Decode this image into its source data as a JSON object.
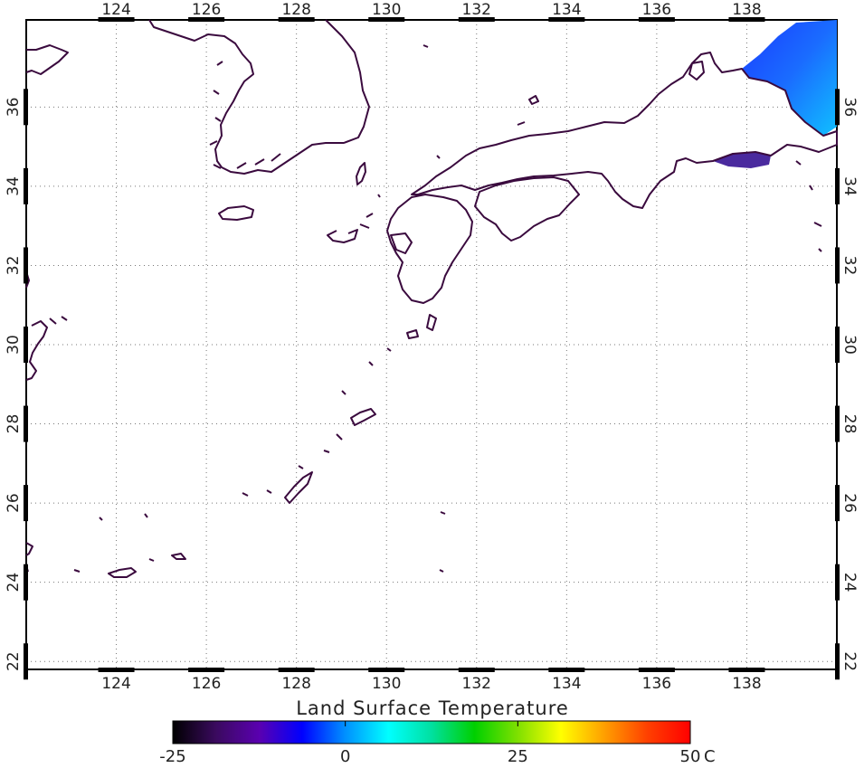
{
  "map": {
    "lon_ticks": [
      "124",
      "126",
      "128",
      "130",
      "132",
      "134",
      "136",
      "138"
    ],
    "lat_ticks": [
      "22",
      "24",
      "26",
      "28",
      "30",
      "32",
      "34",
      "36"
    ],
    "lon_values": [
      124,
      126,
      128,
      130,
      132,
      134,
      136,
      138
    ],
    "lat_values": [
      22,
      24,
      26,
      28,
      30,
      32,
      34,
      36
    ],
    "lon_range": [
      122,
      140
    ],
    "lat_range": [
      21.8,
      38.2
    ]
  },
  "legend": {
    "title": "Land Surface Temperature",
    "ticks": [
      "-25",
      "0",
      "25",
      "50"
    ],
    "unit": "C",
    "range": [
      -25,
      50
    ],
    "colors": [
      "#000000",
      "#3a0a5e",
      "#5a00b0",
      "#0000ff",
      "#0090ff",
      "#00ffff",
      "#00e0a0",
      "#00d000",
      "#80e000",
      "#ffff00",
      "#ffa000",
      "#ff4000",
      "#ff0000"
    ]
  }
}
